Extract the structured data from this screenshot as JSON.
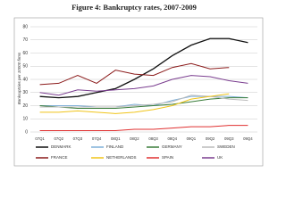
{
  "chart_data": {
    "type": "line",
    "title": "Figure 4: Bankruptcy rates, 2007-2009",
    "y_label": "Bankruptcies per 10000 firms",
    "categories": [
      "07Q1",
      "07Q2",
      "07Q3",
      "07Q4",
      "08Q1",
      "08Q2",
      "08Q3",
      "08Q4",
      "09Q1",
      "09Q2",
      "09Q3",
      "09Q4"
    ],
    "series": [
      {
        "name": "DENMARK",
        "color": "#111111",
        "values": [
          27,
          26,
          27,
          30,
          33,
          40,
          48,
          58,
          66,
          71,
          71,
          68
        ]
      },
      {
        "name": "FINLAND",
        "color": "#7fb0d8",
        "values": [
          20,
          20,
          20,
          19,
          19,
          21,
          20,
          24,
          27,
          27,
          27,
          26
        ]
      },
      {
        "name": "GERMANY",
        "color": "#3a7d3a",
        "values": [
          20,
          19,
          18,
          18,
          18,
          19,
          20,
          21,
          23,
          25,
          26,
          26
        ]
      },
      {
        "name": "SWEDEN",
        "color": "#bbbbbb",
        "values": [
          19,
          19,
          19,
          19,
          19,
          20,
          21,
          23,
          28,
          27,
          25,
          24
        ]
      },
      {
        "name": "FRANCE",
        "color": "#8b1a1a",
        "values": [
          36,
          37,
          43,
          37,
          47,
          44,
          43,
          49,
          52,
          48,
          49,
          null
        ]
      },
      {
        "name": "NETHERLANDS",
        "color": "#f0c419",
        "values": [
          15,
          15,
          16,
          15,
          14,
          15,
          17,
          20,
          25,
          27,
          29,
          null
        ]
      },
      {
        "name": "SPAIN",
        "color": "#e03030",
        "values": [
          1,
          1,
          1,
          1,
          1,
          2,
          2,
          3,
          4,
          4,
          5,
          5
        ]
      },
      {
        "name": "UK",
        "color": "#7a3d8f",
        "values": [
          30,
          28,
          32,
          31,
          32,
          33,
          35,
          40,
          43,
          42,
          39,
          37
        ]
      }
    ],
    "ylim": [
      0,
      80
    ],
    "yticks": [
      0,
      10,
      20,
      30,
      40,
      50,
      60,
      70,
      80
    ],
    "grid": true
  }
}
